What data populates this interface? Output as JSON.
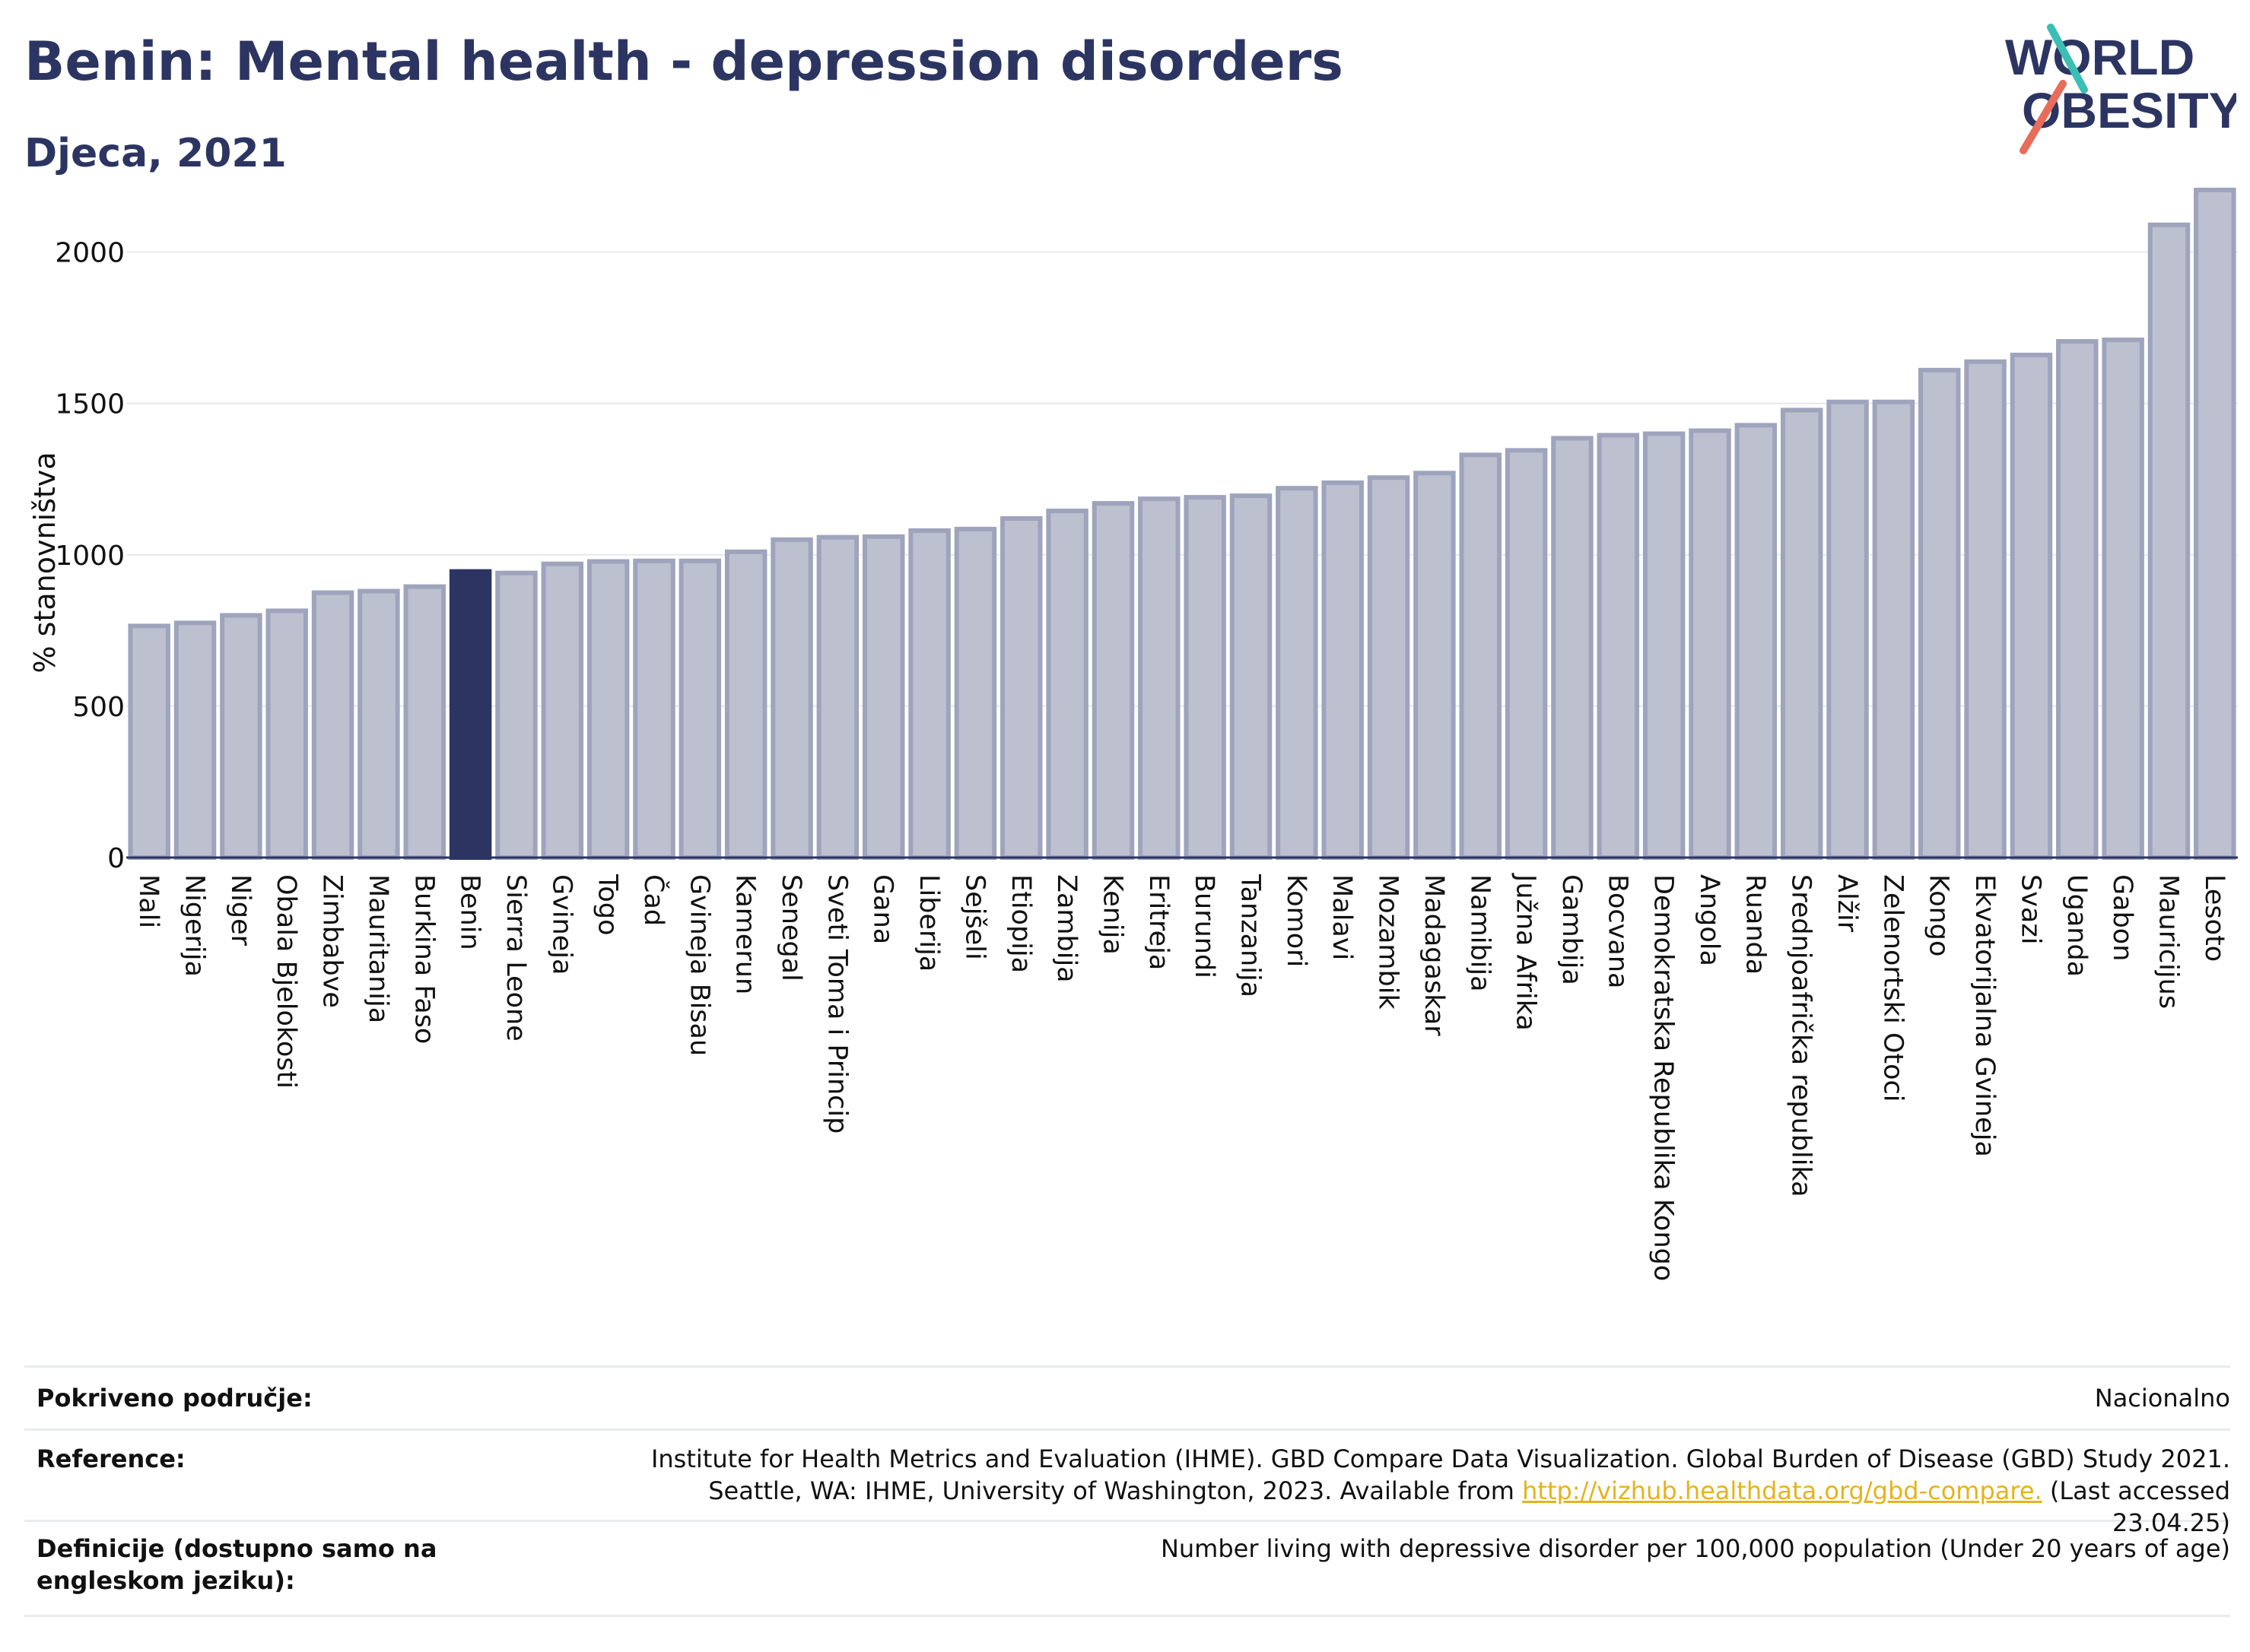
{
  "header": {
    "title": "Benin: Mental health - depression disorders",
    "subtitle": "Djeca, 2021"
  },
  "logo": {
    "line1": "WORLD",
    "line2": "OBESITY",
    "accent_teal": "#3bbfb5",
    "accent_coral": "#e86c5a"
  },
  "colors": {
    "text": "#2c3562",
    "bar_default": "#bcc0cf",
    "bar_default_stroke": "#9fa4bd",
    "bar_highlight": "#2c3562",
    "grid": "#e6e8ee"
  },
  "chart_data": {
    "type": "bar",
    "ylabel": "% stanovništva",
    "xlabel": "",
    "ylim": [
      0,
      2250
    ],
    "yticks": [
      0,
      500,
      1000,
      1500,
      2000
    ],
    "grid": true,
    "highlight": "Benin",
    "categories": [
      "Mali",
      "Nigerija",
      "Niger",
      "Obala Bjelokosti",
      "Zimbabve",
      "Mauritanija",
      "Burkina Faso",
      "Benin",
      "Sierra Leone",
      "Gvineja",
      "Togo",
      "Čad",
      "Gvineja Bisau",
      "Kamerun",
      "Senegal",
      "Sveti Toma i Princip",
      "Gana",
      "Liberija",
      "Sejšeli",
      "Etiopija",
      "Zambija",
      "Kenija",
      "Eritreja",
      "Burundi",
      "Tanzanija",
      "Komori",
      "Malavi",
      "Mozambik",
      "Madagaskar",
      "Namibija",
      "Južna Afrika",
      "Gambija",
      "Bocvana",
      "Demokratska Republika Kongo",
      "Angola",
      "Ruanda",
      "Srednjoafrička republika",
      "Alžir",
      "Zelenortski Otoci",
      "Kongo",
      "Ekvatorijalna Gvineja",
      "Svazi",
      "Uganda",
      "Gabon",
      "Mauricijus",
      "Lesoto"
    ],
    "values": [
      765,
      775,
      800,
      815,
      875,
      880,
      895,
      945,
      940,
      970,
      978,
      980,
      980,
      1010,
      1050,
      1058,
      1060,
      1080,
      1085,
      1120,
      1145,
      1170,
      1185,
      1190,
      1195,
      1220,
      1238,
      1255,
      1270,
      1330,
      1345,
      1385,
      1395,
      1400,
      1410,
      1428,
      1478,
      1505,
      1505,
      1610,
      1638,
      1660,
      1705,
      1710,
      2090,
      2205
    ]
  },
  "footer": {
    "rows": [
      {
        "label": "Pokriveno područje:",
        "value": "Nacionalno"
      },
      {
        "label": "Reference:",
        "value_line1": "Institute for Health Metrics and Evaluation (IHME). GBD Compare Data Visualization. Global Burden of Disease (GBD) Study 2021.",
        "value_line2_pre": "Seattle, WA: IHME, University of Washington, 2023. Available from ",
        "link": "http://vizhub.healthdata.org/gbd-compare.",
        "value_line2_post": " (Last accessed 23.04.25)"
      },
      {
        "label": "Definicije (dostupno samo na engleskom jeziku):",
        "value": "Number living with depressive disorder per 100,000 population (Under 20 years of age)"
      }
    ]
  }
}
